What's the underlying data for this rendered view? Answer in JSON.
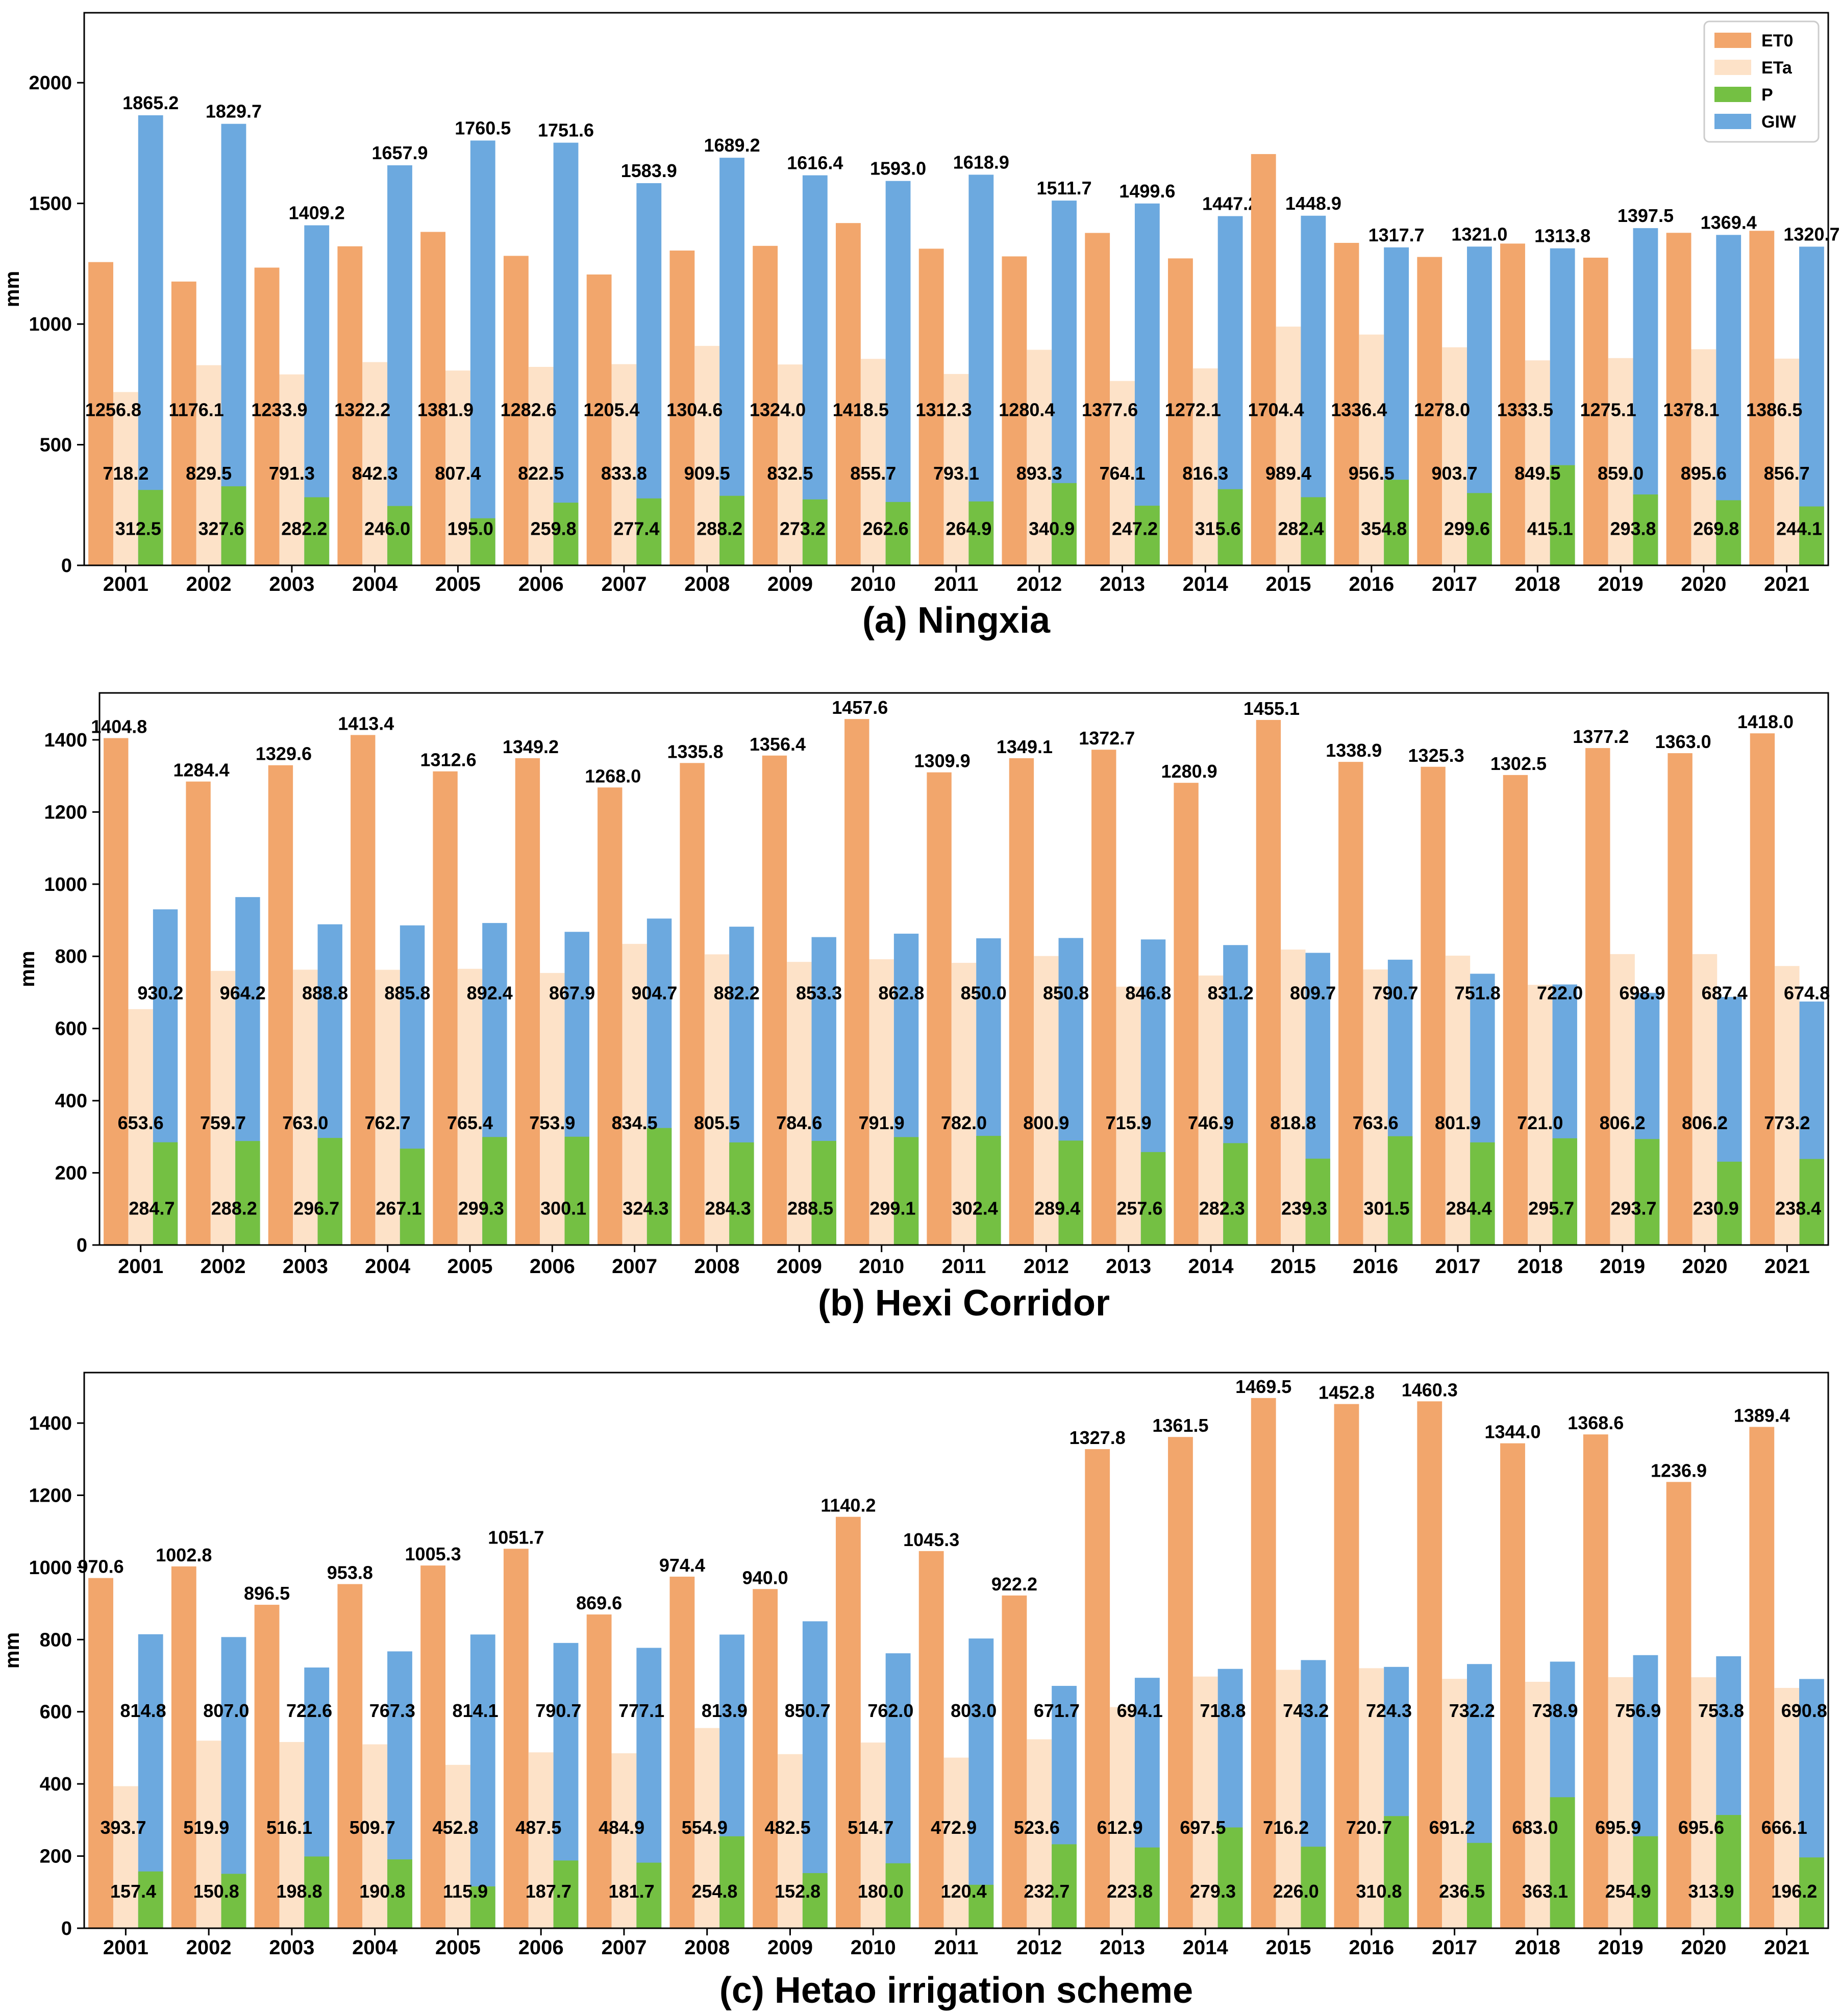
{
  "figure": {
    "colors": {
      "ET0": "#F2A66C",
      "ETa": "#FDE2C8",
      "P": "#74C043",
      "GIW": "#6CA9DF"
    },
    "legend_labels": [
      "ET0",
      "ETa",
      "P",
      "GIW"
    ]
  },
  "chart_data": [
    {
      "type": "bar",
      "title": "(a) Ningxia",
      "ylabel": "mm",
      "xlabel": "",
      "ylim": [
        0,
        2290
      ],
      "yticks": [
        0,
        500,
        1000,
        1500,
        2000
      ],
      "legend": "top-right",
      "categories": [
        "2001",
        "2002",
        "2003",
        "2004",
        "2005",
        "2006",
        "2007",
        "2008",
        "2009",
        "2010",
        "2011",
        "2012",
        "2013",
        "2014",
        "2015",
        "2016",
        "2017",
        "2018",
        "2019",
        "2020",
        "2021"
      ],
      "series": [
        {
          "name": "ET0",
          "values": [
            1256.8,
            1176.1,
            1233.9,
            1322.2,
            1381.9,
            1282.6,
            1205.4,
            1304.6,
            1324.0,
            1418.5,
            1312.3,
            1280.4,
            1377.6,
            1272.1,
            1704.4,
            1336.4,
            1278.0,
            1333.5,
            1275.1,
            1378.1,
            1386.5
          ]
        },
        {
          "name": "ETa",
          "values": [
            718.2,
            829.5,
            791.3,
            842.3,
            807.4,
            822.5,
            833.8,
            909.5,
            832.5,
            855.7,
            793.1,
            893.3,
            764.1,
            816.3,
            989.4,
            956.5,
            903.7,
            849.5,
            859.0,
            895.6,
            856.7
          ]
        },
        {
          "name": "P",
          "values": [
            312.5,
            327.6,
            282.2,
            246.0,
            195.0,
            259.8,
            277.4,
            288.2,
            273.2,
            262.6,
            264.9,
            340.9,
            247.2,
            315.6,
            282.4,
            354.8,
            299.6,
            415.1,
            293.8,
            269.8,
            244.1
          ]
        },
        {
          "name": "GIW",
          "values": [
            1865.2,
            1829.7,
            1409.2,
            1657.9,
            1760.5,
            1751.6,
            1583.9,
            1689.2,
            1616.4,
            1593.0,
            1618.9,
            1511.7,
            1499.6,
            1447.2,
            1448.9,
            1317.7,
            1321.0,
            1313.8,
            1397.5,
            1369.4,
            1320.7
          ]
        }
      ]
    },
    {
      "type": "bar",
      "title": "(b) Hexi Corridor",
      "ylabel": "mm",
      "xlabel": "",
      "ylim": [
        0,
        1530
      ],
      "yticks": [
        0,
        200,
        400,
        600,
        800,
        1000,
        1200,
        1400
      ],
      "legend": "none",
      "categories": [
        "2001",
        "2002",
        "2003",
        "2004",
        "2005",
        "2006",
        "2007",
        "2008",
        "2009",
        "2010",
        "2011",
        "2012",
        "2013",
        "2014",
        "2015",
        "2016",
        "2017",
        "2018",
        "2019",
        "2020",
        "2021"
      ],
      "series": [
        {
          "name": "ET0",
          "values": [
            1404.8,
            1284.4,
            1329.6,
            1413.4,
            1312.6,
            1349.2,
            1268.0,
            1335.8,
            1356.4,
            1457.6,
            1309.9,
            1349.1,
            1372.7,
            1280.9,
            1455.1,
            1338.9,
            1325.3,
            1302.5,
            1377.2,
            1363.0,
            1418.0
          ]
        },
        {
          "name": "ETa",
          "values": [
            653.6,
            759.7,
            763.0,
            762.7,
            765.4,
            753.9,
            834.5,
            805.5,
            784.6,
            791.9,
            782.0,
            800.9,
            715.9,
            746.9,
            818.8,
            763.6,
            801.9,
            721.0,
            806.2,
            806.2,
            773.2
          ]
        },
        {
          "name": "P",
          "values": [
            284.7,
            288.2,
            296.7,
            267.1,
            299.3,
            300.1,
            324.3,
            284.3,
            288.5,
            299.1,
            302.4,
            289.4,
            257.6,
            282.3,
            239.3,
            301.5,
            284.4,
            295.7,
            293.7,
            230.9,
            238.4
          ]
        },
        {
          "name": "GIW",
          "values": [
            930.2,
            964.2,
            888.8,
            885.8,
            892.4,
            867.9,
            904.7,
            882.2,
            853.3,
            862.8,
            850.0,
            850.8,
            846.8,
            831.2,
            809.7,
            790.7,
            751.8,
            722.0,
            698.9,
            687.4,
            674.8
          ]
        }
      ]
    },
    {
      "type": "bar",
      "title": "(c) Hetao irrigation scheme",
      "ylabel": "mm",
      "xlabel": "",
      "ylim": [
        0,
        1540
      ],
      "yticks": [
        0,
        200,
        400,
        600,
        800,
        1000,
        1200,
        1400
      ],
      "legend": "none",
      "categories": [
        "2001",
        "2002",
        "2003",
        "2004",
        "2005",
        "2006",
        "2007",
        "2008",
        "2009",
        "2010",
        "2011",
        "2012",
        "2013",
        "2014",
        "2015",
        "2016",
        "2017",
        "2018",
        "2019",
        "2020",
        "2021"
      ],
      "series": [
        {
          "name": "ET0",
          "values": [
            970.6,
            1002.8,
            896.5,
            953.8,
            1005.3,
            1051.7,
            869.6,
            974.4,
            940.0,
            1140.2,
            1045.3,
            922.2,
            1327.8,
            1361.5,
            1469.5,
            1452.8,
            1460.3,
            1344.0,
            1368.6,
            1236.9,
            1389.4
          ]
        },
        {
          "name": "ETa",
          "values": [
            393.7,
            519.9,
            516.1,
            509.7,
            452.8,
            487.5,
            484.9,
            554.9,
            482.5,
            514.7,
            472.9,
            523.6,
            612.9,
            697.5,
            716.2,
            720.7,
            691.2,
            683.0,
            695.9,
            695.6,
            666.1
          ]
        },
        {
          "name": "P",
          "values": [
            157.4,
            150.8,
            198.8,
            190.8,
            115.9,
            187.7,
            181.7,
            254.8,
            152.8,
            180.0,
            120.4,
            232.7,
            223.8,
            279.3,
            226.0,
            310.8,
            236.5,
            363.1,
            254.9,
            313.9,
            196.2
          ]
        },
        {
          "name": "GIW",
          "values": [
            814.8,
            807.0,
            722.6,
            767.3,
            814.1,
            790.7,
            777.1,
            813.9,
            850.7,
            762.0,
            803.0,
            671.7,
            694.1,
            718.8,
            743.2,
            724.3,
            732.2,
            738.9,
            756.9,
            753.8,
            690.8
          ]
        }
      ]
    }
  ]
}
